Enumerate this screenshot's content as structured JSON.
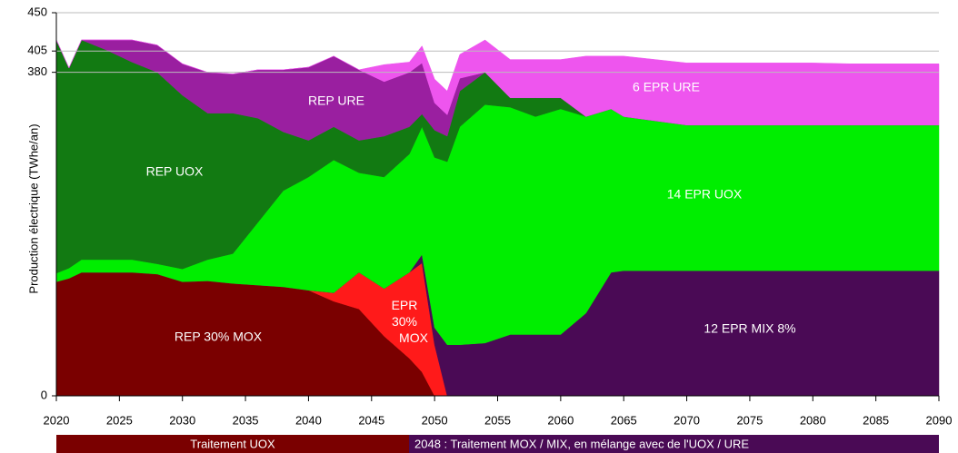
{
  "chart_data": {
    "type": "stacked_area",
    "ylabel": "Production électrique (TWhe/an)",
    "x": [
      2020,
      2021,
      2022,
      2024,
      2026,
      2028,
      2030,
      2032,
      2034,
      2036,
      2038,
      2040,
      2042,
      2044,
      2046,
      2048,
      2049,
      2050,
      2051,
      2052,
      2054,
      2056,
      2058,
      2060,
      2062,
      2064,
      2065,
      2070,
      2080,
      2083,
      2090
    ],
    "xlim": [
      2020,
      2090
    ],
    "xticks": [
      2020,
      2025,
      2030,
      2035,
      2040,
      2045,
      2050,
      2055,
      2060,
      2065,
      2070,
      2075,
      2080,
      2085,
      2090
    ],
    "ylim": [
      0,
      450
    ],
    "yticks": [
      0,
      380,
      405,
      450
    ],
    "grid": true,
    "series": [
      {
        "name": "REP 30% MOX",
        "color": "#7a0000",
        "values": [
          134,
          138,
          145,
          145,
          145,
          143,
          134,
          135,
          132,
          130,
          128,
          124,
          111,
          102,
          70,
          44,
          28,
          0,
          0,
          0,
          0,
          0,
          0,
          0,
          0,
          0,
          0,
          0,
          0,
          0,
          0
        ]
      },
      {
        "name": "EPR 30% MOX",
        "color": "#ff1a1a",
        "values": [
          0,
          0,
          0,
          0,
          0,
          0,
          0,
          0,
          0,
          0,
          0,
          0,
          10,
          43,
          56,
          101,
          128,
          60,
          0,
          0,
          0,
          0,
          0,
          0,
          0,
          0,
          0,
          0,
          0,
          0,
          0
        ]
      },
      {
        "name": "12 EPR MIX 8%",
        "color": "#4a0a55",
        "values": [
          0,
          0,
          0,
          0,
          0,
          0,
          0,
          0,
          0,
          0,
          0,
          0,
          0,
          0,
          0,
          0,
          10,
          20,
          60,
          60,
          62,
          72,
          72,
          72,
          97,
          145,
          147,
          147,
          147,
          147,
          147
        ]
      },
      {
        "name": "14 EPR UOX",
        "color": "#00ee00",
        "values": [
          10,
          12,
          15,
          15,
          15,
          12,
          15,
          25,
          35,
          74,
          113,
          133,
          156,
          117,
          131,
          139,
          150,
          200,
          215,
          256,
          280,
          267,
          256,
          265,
          231,
          192,
          181,
          171,
          171,
          171,
          171
        ]
      },
      {
        "name": "REP UOX",
        "color": "#127a12",
        "values": [
          274,
          235,
          258,
          246,
          232,
          225,
          204,
          172,
          165,
          122,
          69,
          43,
          39,
          38,
          48,
          32,
          15,
          32,
          30,
          42,
          38,
          11,
          22,
          13,
          0,
          0,
          0,
          0,
          0,
          0,
          0
        ]
      },
      {
        "name": "REP URE",
        "color": "#9a1fa0",
        "values": [
          0,
          0,
          0,
          12,
          26,
          32,
          37,
          48,
          46,
          57,
          73,
          86,
          83,
          83,
          64,
          64,
          60,
          32,
          25,
          15,
          0,
          0,
          0,
          0,
          0,
          0,
          0,
          0,
          0,
          0,
          0
        ]
      },
      {
        "name": "6 EPR URE",
        "color": "#ee55ee",
        "values": [
          0,
          0,
          0,
          0,
          0,
          0,
          0,
          0,
          0,
          0,
          0,
          0,
          0,
          0,
          20,
          12,
          20,
          28,
          28,
          28,
          38,
          45,
          45,
          45,
          71,
          62,
          71,
          73,
          73,
          72,
          72
        ]
      }
    ],
    "annotations": [
      {
        "text": "Traitement UOX",
        "color": "#7a0000"
      },
      {
        "text": "2048 : Traitement MOX / MIX, en mélange avec de l'UOX / URE",
        "color": "#4a0a55"
      }
    ]
  }
}
